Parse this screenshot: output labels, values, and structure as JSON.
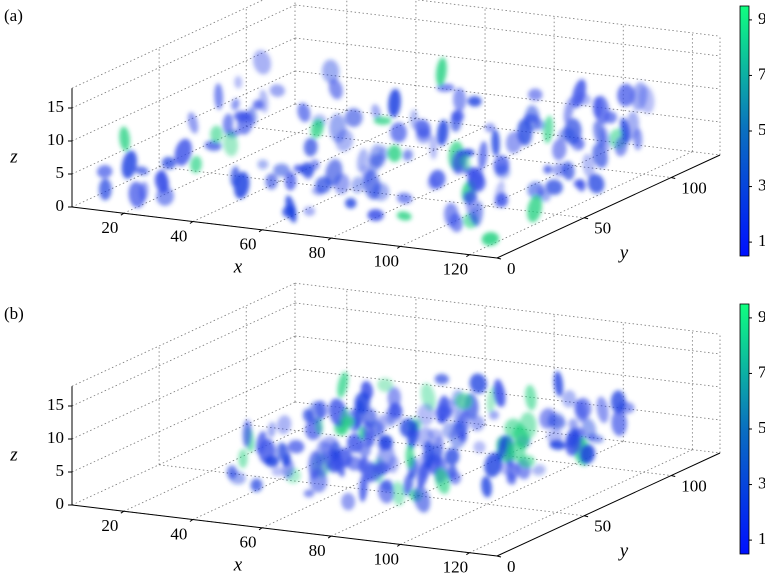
{
  "chart_data": [
    {
      "type": "volume3d",
      "panel_label": "(a)",
      "xlabel": "x",
      "ylabel": "y",
      "zlabel": "z",
      "xlim": [
        5,
        128
      ],
      "ylim": [
        0,
        128
      ],
      "zlim": [
        0,
        18
      ],
      "xticks": [
        20,
        40,
        60,
        80,
        100,
        120
      ],
      "yticks": [
        0,
        50,
        100
      ],
      "zticks": [
        0,
        5,
        10,
        15
      ],
      "clim": [
        0.5,
        9.5
      ],
      "colorbar_ticks": [
        1,
        3,
        5,
        7,
        9
      ],
      "grid": true
    },
    {
      "type": "volume3d",
      "panel_label": "(b)",
      "xlabel": "x",
      "ylabel": "y",
      "zlabel": "z",
      "xlim": [
        5,
        128
      ],
      "ylim": [
        0,
        128
      ],
      "zlim": [
        0,
        18
      ],
      "xticks": [
        20,
        40,
        60,
        80,
        100,
        120
      ],
      "yticks": [
        0,
        50,
        100
      ],
      "zticks": [
        0,
        5,
        10,
        15
      ],
      "clim": [
        0.5,
        9.5
      ],
      "colorbar_ticks": [
        1,
        3,
        5,
        7,
        9
      ],
      "grid": true
    }
  ]
}
